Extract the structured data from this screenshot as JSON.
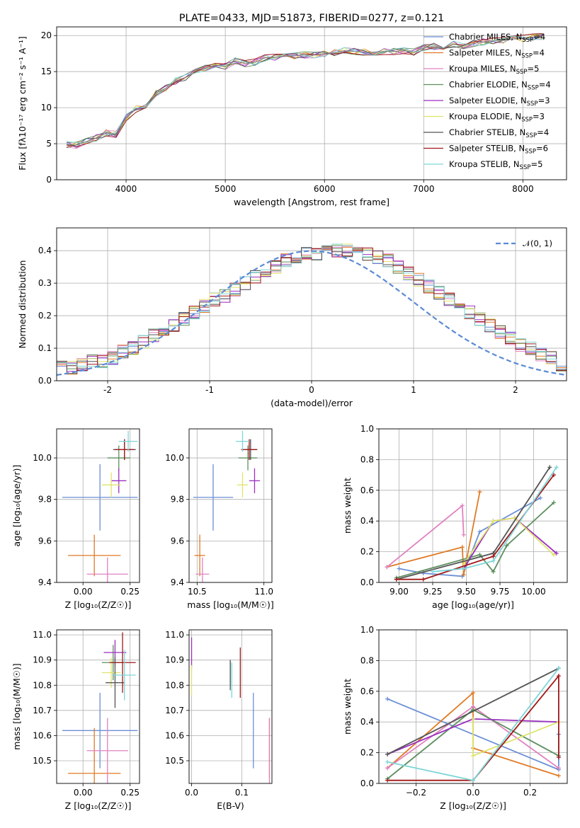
{
  "figure": {
    "title": "PLATE=0433, MJD=51873, FIBERID=0277, z=0.121",
    "model_colors": [
      "#6a8fd6",
      "#e07a25",
      "#e082c0",
      "#5e8f5e",
      "#9b2fc0",
      "#dfe46a",
      "#555555",
      "#a01818",
      "#7ed6d8"
    ]
  },
  "legend_spectrum": [
    {
      "name": "Chabrier MILES",
      "nssp": "4",
      "color": "#6a8fd6"
    },
    {
      "name": "Salpeter MILES",
      "nssp": "4",
      "color": "#e07a25"
    },
    {
      "name": "Kroupa MILES",
      "nssp": "5",
      "color": "#e082c0"
    },
    {
      "name": "Chabrier ELODIE",
      "nssp": "4",
      "color": "#5e8f5e"
    },
    {
      "name": "Salpeter ELODIE",
      "nssp": "3",
      "color": "#9b2fc0"
    },
    {
      "name": "Kroupa ELODIE",
      "nssp": "3",
      "color": "#dfe46a"
    },
    {
      "name": "Chabrier STELIB",
      "nssp": "4",
      "color": "#555555"
    },
    {
      "name": "Salpeter STELIB",
      "nssp": "6",
      "color": "#a01818"
    },
    {
      "name": "Kroupa STELIB",
      "nssp": "5",
      "color": "#7ed6d8"
    }
  ],
  "legend_hist": {
    "label": "𝒩(0, 1)",
    "color": "#5b8ad6"
  },
  "chart_data": [
    {
      "type": "line",
      "id": "spectrum",
      "xlabel": "wavelength [Angstrom, rest frame]",
      "ylabel": "Flux [fλ10⁻¹⁷ erg cm⁻² s⁻¹ A⁻¹]",
      "xlim": [
        3300,
        8440
      ],
      "ylim": [
        0,
        21.2
      ],
      "xticks": [
        4000,
        5000,
        6000,
        7000,
        8000
      ],
      "yticks": [
        0,
        5,
        10,
        15,
        20
      ],
      "x": [
        3400,
        3500,
        3600,
        3700,
        3800,
        3900,
        4000,
        4100,
        4200,
        4300,
        4400,
        4500,
        4600,
        4700,
        4800,
        4900,
        5000,
        5100,
        5200,
        5300,
        5400,
        5500,
        5600,
        5700,
        5800,
        5900,
        6000,
        6100,
        6200,
        6300,
        6400,
        6500,
        6600,
        6700,
        6800,
        6900,
        7000,
        7100,
        7200,
        7300,
        7400,
        7500,
        7600,
        7700,
        7800,
        7900,
        8000,
        8100,
        8200
      ],
      "y": [
        4.9,
        4.8,
        5.3,
        5.8,
        6.5,
        6.3,
        8.6,
        9.8,
        10.4,
        12.0,
        12.7,
        13.7,
        14.2,
        14.9,
        15.5,
        15.9,
        15.7,
        16.5,
        16.1,
        16.3,
        16.9,
        17.0,
        17.1,
        17.2,
        17.3,
        17.3,
        17.5,
        17.6,
        17.9,
        17.8,
        17.7,
        17.7,
        17.8,
        17.8,
        17.9,
        17.7,
        18.3,
        18.5,
        18.2,
        18.8,
        18.6,
        18.9,
        19.1,
        19.3,
        19.3,
        19.5,
        19.6,
        19.8,
        19.9
      ]
    },
    {
      "type": "bar",
      "id": "residual-histogram",
      "xlabel": "(data-model)/error",
      "ylabel": "Normed distribution",
      "xlim": [
        -2.5,
        2.5
      ],
      "ylim": [
        0,
        0.47
      ],
      "xticks": [
        -2,
        -1,
        0,
        1,
        2
      ],
      "yticks": [
        0.0,
        0.1,
        0.2,
        0.3,
        0.4
      ],
      "bin_edges_start": -2.5,
      "bin_width": 0.1,
      "values": [
        0.04,
        0.04,
        0.05,
        0.06,
        0.06,
        0.07,
        0.09,
        0.1,
        0.12,
        0.14,
        0.15,
        0.17,
        0.19,
        0.21,
        0.23,
        0.25,
        0.26,
        0.28,
        0.3,
        0.32,
        0.34,
        0.35,
        0.37,
        0.38,
        0.39,
        0.39,
        0.4,
        0.4,
        0.4,
        0.39,
        0.39,
        0.38,
        0.37,
        0.35,
        0.33,
        0.31,
        0.29,
        0.27,
        0.25,
        0.23,
        0.21,
        0.19,
        0.17,
        0.15,
        0.13,
        0.11,
        0.1,
        0.08,
        0.07,
        0.05
      ]
    },
    {
      "type": "scatter",
      "id": "age-vs-z",
      "xlabel": "Z [log₁₀(Z/Z☉)]",
      "ylabel": "age  [log₁₀(age/yr)]",
      "xlim": [
        -0.14,
        0.3
      ],
      "ylim": [
        9.4,
        10.14
      ],
      "xticks": [
        0.0,
        0.25
      ],
      "xtick_labels": [
        "0.00",
        "0.25"
      ],
      "yticks": [
        9.4,
        9.6,
        9.8,
        10.0
      ],
      "yticks_labels": [
        "9.4",
        "9.6",
        "9.8",
        "10.0"
      ],
      "points": [
        {
          "x": 0.09,
          "y": 9.81,
          "xe": 0.2,
          "ye": 0.16,
          "color": "#6a8fd6"
        },
        {
          "x": 0.06,
          "y": 9.53,
          "xe": 0.14,
          "ye": 0.1,
          "color": "#e07a25"
        },
        {
          "x": 0.13,
          "y": 9.44,
          "xe": 0.11,
          "ye": 0.08,
          "color": "#e082c0"
        },
        {
          "x": 0.19,
          "y": 10.0,
          "xe": 0.06,
          "ye": 0.06,
          "color": "#5e8f5e"
        },
        {
          "x": 0.19,
          "y": 9.89,
          "xe": 0.04,
          "ye": 0.06,
          "color": "#9b2fc0"
        },
        {
          "x": 0.15,
          "y": 9.87,
          "xe": 0.05,
          "ye": 0.06,
          "color": "#dfe46a"
        },
        {
          "x": 0.22,
          "y": 10.04,
          "xe": 0.06,
          "ye": 0.05,
          "color": "#555555"
        },
        {
          "x": 0.22,
          "y": 10.04,
          "xe": 0.05,
          "ye": 0.05,
          "color": "#a01818"
        },
        {
          "x": 0.24,
          "y": 10.08,
          "xe": 0.05,
          "ye": 0.05,
          "color": "#7ed6d8"
        }
      ]
    },
    {
      "type": "scatter",
      "id": "age-vs-mass",
      "xlabel": "mass [log₁₀(M/M☉)]",
      "ylabel": "",
      "xlim": [
        10.44,
        11.06
      ],
      "ylim": [
        9.4,
        10.14
      ],
      "xticks": [
        10.5,
        11.0
      ],
      "xtick_labels": [
        "10.5",
        "11.0"
      ],
      "yticks": [
        9.4,
        9.6,
        9.8,
        10.0
      ],
      "yticks_labels": [
        "9.4",
        "9.6",
        "9.8",
        "10.0"
      ],
      "points": [
        {
          "x": 10.62,
          "y": 9.81,
          "xe": 0.15,
          "ye": 0.16,
          "color": "#6a8fd6"
        },
        {
          "x": 10.52,
          "y": 9.53,
          "xe": 0.04,
          "ye": 0.1,
          "color": "#e07a25"
        },
        {
          "x": 10.54,
          "y": 9.44,
          "xe": 0.05,
          "ye": 0.08,
          "color": "#e082c0"
        },
        {
          "x": 10.88,
          "y": 10.0,
          "xe": 0.07,
          "ye": 0.06,
          "color": "#5e8f5e"
        },
        {
          "x": 10.93,
          "y": 9.89,
          "xe": 0.04,
          "ye": 0.06,
          "color": "#9b2fc0"
        },
        {
          "x": 10.84,
          "y": 9.87,
          "xe": 0.04,
          "ye": 0.06,
          "color": "#dfe46a"
        },
        {
          "x": 10.9,
          "y": 10.04,
          "xe": 0.05,
          "ye": 0.05,
          "color": "#555555"
        },
        {
          "x": 10.89,
          "y": 10.04,
          "xe": 0.06,
          "ye": 0.05,
          "color": "#a01818"
        },
        {
          "x": 10.84,
          "y": 10.08,
          "xe": 0.05,
          "ye": 0.05,
          "color": "#7ed6d8"
        }
      ]
    },
    {
      "type": "line",
      "id": "mass-weight-vs-age",
      "xlabel": "age  [log₁₀(age/yr)]",
      "ylabel": "mass weight",
      "xlim": [
        8.85,
        10.25
      ],
      "ylim": [
        0,
        1
      ],
      "xticks": [
        9.0,
        9.25,
        9.5,
        9.75,
        10.0
      ],
      "xtick_labels": [
        "9.00",
        "9.25",
        "9.50",
        "9.75",
        "10.00"
      ],
      "yticks": [
        0.0,
        0.2,
        0.4,
        0.6,
        0.8,
        1.0
      ],
      "series": [
        {
          "color": "#6a8fd6",
          "x": [
            9.0,
            9.18,
            9.47,
            9.6,
            10.05
          ],
          "y": [
            0.09,
            0.06,
            0.04,
            0.33,
            0.55
          ]
        },
        {
          "color": "#e07a25",
          "x": [
            8.91,
            9.47,
            9.48,
            9.6
          ],
          "y": [
            0.1,
            0.23,
            0.05,
            0.59
          ]
        },
        {
          "color": "#e082c0",
          "x": [
            8.91,
            9.47,
            9.48
          ],
          "y": [
            0.1,
            0.5,
            0.31
          ]
        },
        {
          "color": "#5e8f5e",
          "x": [
            8.98,
            9.6,
            9.7,
            9.8,
            10.15
          ],
          "y": [
            0.03,
            0.18,
            0.07,
            0.24,
            0.52
          ]
        },
        {
          "color": "#9b2fc0",
          "x": [
            9.48,
            9.7,
            9.86,
            10.17
          ],
          "y": [
            0.09,
            0.4,
            0.42,
            0.19
          ]
        },
        {
          "color": "#dfe46a",
          "x": [
            9.48,
            9.7,
            9.86,
            10.15
          ],
          "y": [
            0.12,
            0.4,
            0.42,
            0.18
          ]
        },
        {
          "color": "#555555",
          "x": [
            8.98,
            9.7,
            10.12
          ],
          "y": [
            0.02,
            0.19,
            0.75
          ]
        },
        {
          "color": "#a01818",
          "x": [
            8.98,
            9.18,
            9.7,
            10.15
          ],
          "y": [
            0.02,
            0.02,
            0.17,
            0.7
          ]
        },
        {
          "color": "#7ed6d8",
          "x": [
            9.25,
            9.48,
            9.7,
            10.17
          ],
          "y": [
            0.07,
            0.09,
            0.14,
            0.75
          ]
        }
      ]
    },
    {
      "type": "scatter",
      "id": "mass-vs-z",
      "xlabel": "Z [log₁₀(Z/Z☉)]",
      "ylabel": "mass [log₁₀(M/M☉)]",
      "xlim": [
        -0.14,
        0.3
      ],
      "ylim": [
        10.41,
        11.02
      ],
      "xticks": [
        0.0,
        0.25
      ],
      "xtick_labels": [
        "0.00",
        "0.25"
      ],
      "yticks": [
        10.5,
        10.6,
        10.7,
        10.8,
        10.9,
        11.0
      ],
      "yticks_labels": [
        "10.5",
        "10.6",
        "10.7",
        "10.8",
        "10.9",
        "11.0"
      ],
      "points": [
        {
          "x": 0.09,
          "y": 10.62,
          "xe": 0.2,
          "ye": 0.15,
          "color": "#6a8fd6"
        },
        {
          "x": 0.06,
          "y": 10.45,
          "xe": 0.14,
          "ye": 0.18,
          "color": "#e07a25"
        },
        {
          "x": 0.13,
          "y": 10.54,
          "xe": 0.11,
          "ye": 0.13,
          "color": "#e082c0"
        },
        {
          "x": 0.16,
          "y": 10.89,
          "xe": 0.06,
          "ye": 0.07,
          "color": "#5e8f5e"
        },
        {
          "x": 0.17,
          "y": 10.93,
          "xe": 0.06,
          "ye": 0.05,
          "color": "#9b2fc0"
        },
        {
          "x": 0.15,
          "y": 10.85,
          "xe": 0.05,
          "ye": 0.06,
          "color": "#dfe46a"
        },
        {
          "x": 0.17,
          "y": 10.81,
          "xe": 0.05,
          "ye": 0.1,
          "color": "#555555"
        },
        {
          "x": 0.21,
          "y": 10.89,
          "xe": 0.07,
          "ye": 0.12,
          "color": "#a01818"
        },
        {
          "x": 0.22,
          "y": 10.84,
          "xe": 0.06,
          "ye": 0.1,
          "color": "#7ed6d8"
        }
      ]
    },
    {
      "type": "scatter",
      "id": "mass-vs-ebv",
      "xlabel": "E(B-V)",
      "ylabel": "",
      "xlim": [
        -0.005,
        0.16
      ],
      "ylim": [
        10.41,
        11.02
      ],
      "xticks": [
        0.0,
        0.1
      ],
      "xtick_labels": [
        "0.0",
        "0.1"
      ],
      "yticks": [
        10.5,
        10.6,
        10.7,
        10.8,
        10.9,
        11.0
      ],
      "yticks_labels": [
        "10.5",
        "10.6",
        "10.7",
        "10.8",
        "10.9",
        "11.0"
      ],
      "points": [
        {
          "x": 0.123,
          "y": 10.62,
          "xe": 0,
          "ye": 0.15,
          "color": "#6a8fd6"
        },
        {
          "x": 0.155,
          "y": 10.55,
          "xe": 0,
          "ye": 0.12,
          "color": "#e07a25"
        },
        {
          "x": 0.155,
          "y": 10.54,
          "xe": 0,
          "ye": 0.13,
          "color": "#e082c0"
        },
        {
          "x": 0.077,
          "y": 10.85,
          "xe": 0,
          "ye": 0.05,
          "color": "#5e8f5e"
        },
        {
          "x": 0.0,
          "y": 10.93,
          "xe": 0,
          "ye": 0.06,
          "color": "#9b2fc0"
        },
        {
          "x": 0.0,
          "y": 10.82,
          "xe": 0,
          "ye": 0.06,
          "color": "#dfe46a"
        },
        {
          "x": 0.077,
          "y": 10.84,
          "xe": 0,
          "ye": 0.06,
          "color": "#555555"
        },
        {
          "x": 0.097,
          "y": 10.85,
          "xe": 0,
          "ye": 0.1,
          "color": "#a01818"
        },
        {
          "x": 0.08,
          "y": 10.82,
          "xe": 0,
          "ye": 0.07,
          "color": "#7ed6d8"
        }
      ]
    },
    {
      "type": "line",
      "id": "mass-weight-vs-z",
      "xlabel": "Z [log₁₀(Z/Z☉)]",
      "ylabel": "mass weight",
      "xlim": [
        -0.33,
        0.33
      ],
      "ylim": [
        0,
        1
      ],
      "xticks": [
        -0.2,
        0.0,
        0.2
      ],
      "xtick_labels": [
        "−0.2",
        "0.0",
        "0.2"
      ],
      "yticks": [
        0.0,
        0.2,
        0.4,
        0.6,
        0.8,
        1.0
      ],
      "series": [
        {
          "color": "#6a8fd6",
          "x": [
            -0.3,
            0.3,
            0.3
          ],
          "y": [
            0.55,
            0.09,
            0.32
          ]
        },
        {
          "color": "#e07a25",
          "x": [
            -0.3,
            0.0,
            0.0,
            0.3
          ],
          "y": [
            0.1,
            0.59,
            0.23,
            0.05
          ]
        },
        {
          "color": "#e082c0",
          "x": [
            -0.3,
            0.0,
            0.3
          ],
          "y": [
            0.1,
            0.5,
            0.1
          ]
        },
        {
          "color": "#5e8f5e",
          "x": [
            -0.3,
            0.0,
            0.3
          ],
          "y": [
            0.03,
            0.48,
            0.18
          ]
        },
        {
          "color": "#9b2fc0",
          "x": [
            -0.3,
            0.0,
            0.3
          ],
          "y": [
            0.19,
            0.42,
            0.4
          ]
        },
        {
          "color": "#dfe46a",
          "x": [
            0.0,
            0.0,
            0.3
          ],
          "y": [
            0.42,
            0.18,
            0.4
          ]
        },
        {
          "color": "#555555",
          "x": [
            -0.3,
            0.3
          ],
          "y": [
            0.19,
            0.75
          ]
        },
        {
          "color": "#a01818",
          "x": [
            -0.3,
            0.0,
            0.3,
            0.3
          ],
          "y": [
            0.02,
            0.02,
            0.7,
            0.17
          ]
        },
        {
          "color": "#7ed6d8",
          "x": [
            -0.3,
            0.0,
            0.3
          ],
          "y": [
            0.14,
            0.02,
            0.75
          ]
        }
      ]
    }
  ]
}
